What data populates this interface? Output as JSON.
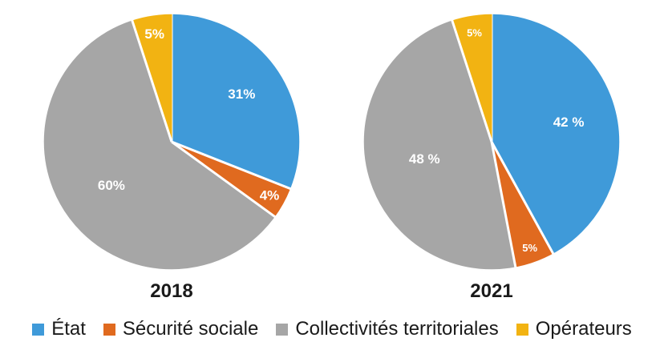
{
  "colors": {
    "État": "#3f9ad9",
    "Sécurité sociale": "#e06a1f",
    "Collectivités territoriales": "#a6a6a6",
    "Opérateurs": "#f2b312"
  },
  "chart_data": [
    {
      "type": "pie",
      "title": "2018",
      "categories": [
        "État",
        "Sécurité sociale",
        "Collectivités territoriales",
        "Opérateurs"
      ],
      "values": [
        31,
        4,
        60,
        5
      ],
      "labels": [
        "31%",
        "4%",
        "60%",
        "5%"
      ],
      "start_angle_deg": 0,
      "direction": "clockwise",
      "exploded": false
    },
    {
      "type": "pie",
      "title": "2021",
      "categories": [
        "État",
        "Sécurité sociale",
        "Collectivités territoriales",
        "Opérateurs"
      ],
      "values": [
        42,
        5,
        48,
        5
      ],
      "labels": [
        "42 %",
        "5%",
        "48 %",
        "5%"
      ],
      "start_angle_deg": 0,
      "direction": "clockwise",
      "exploded": false
    }
  ],
  "legend": {
    "placement": "bottom",
    "items": [
      {
        "label": "État",
        "color": "#3f9ad9"
      },
      {
        "label": "Sécurité sociale",
        "color": "#e06a1f"
      },
      {
        "label": "Collectivités territoriales",
        "color": "#a6a6a6"
      },
      {
        "label": "Opérateurs",
        "color": "#f2b312"
      }
    ]
  }
}
